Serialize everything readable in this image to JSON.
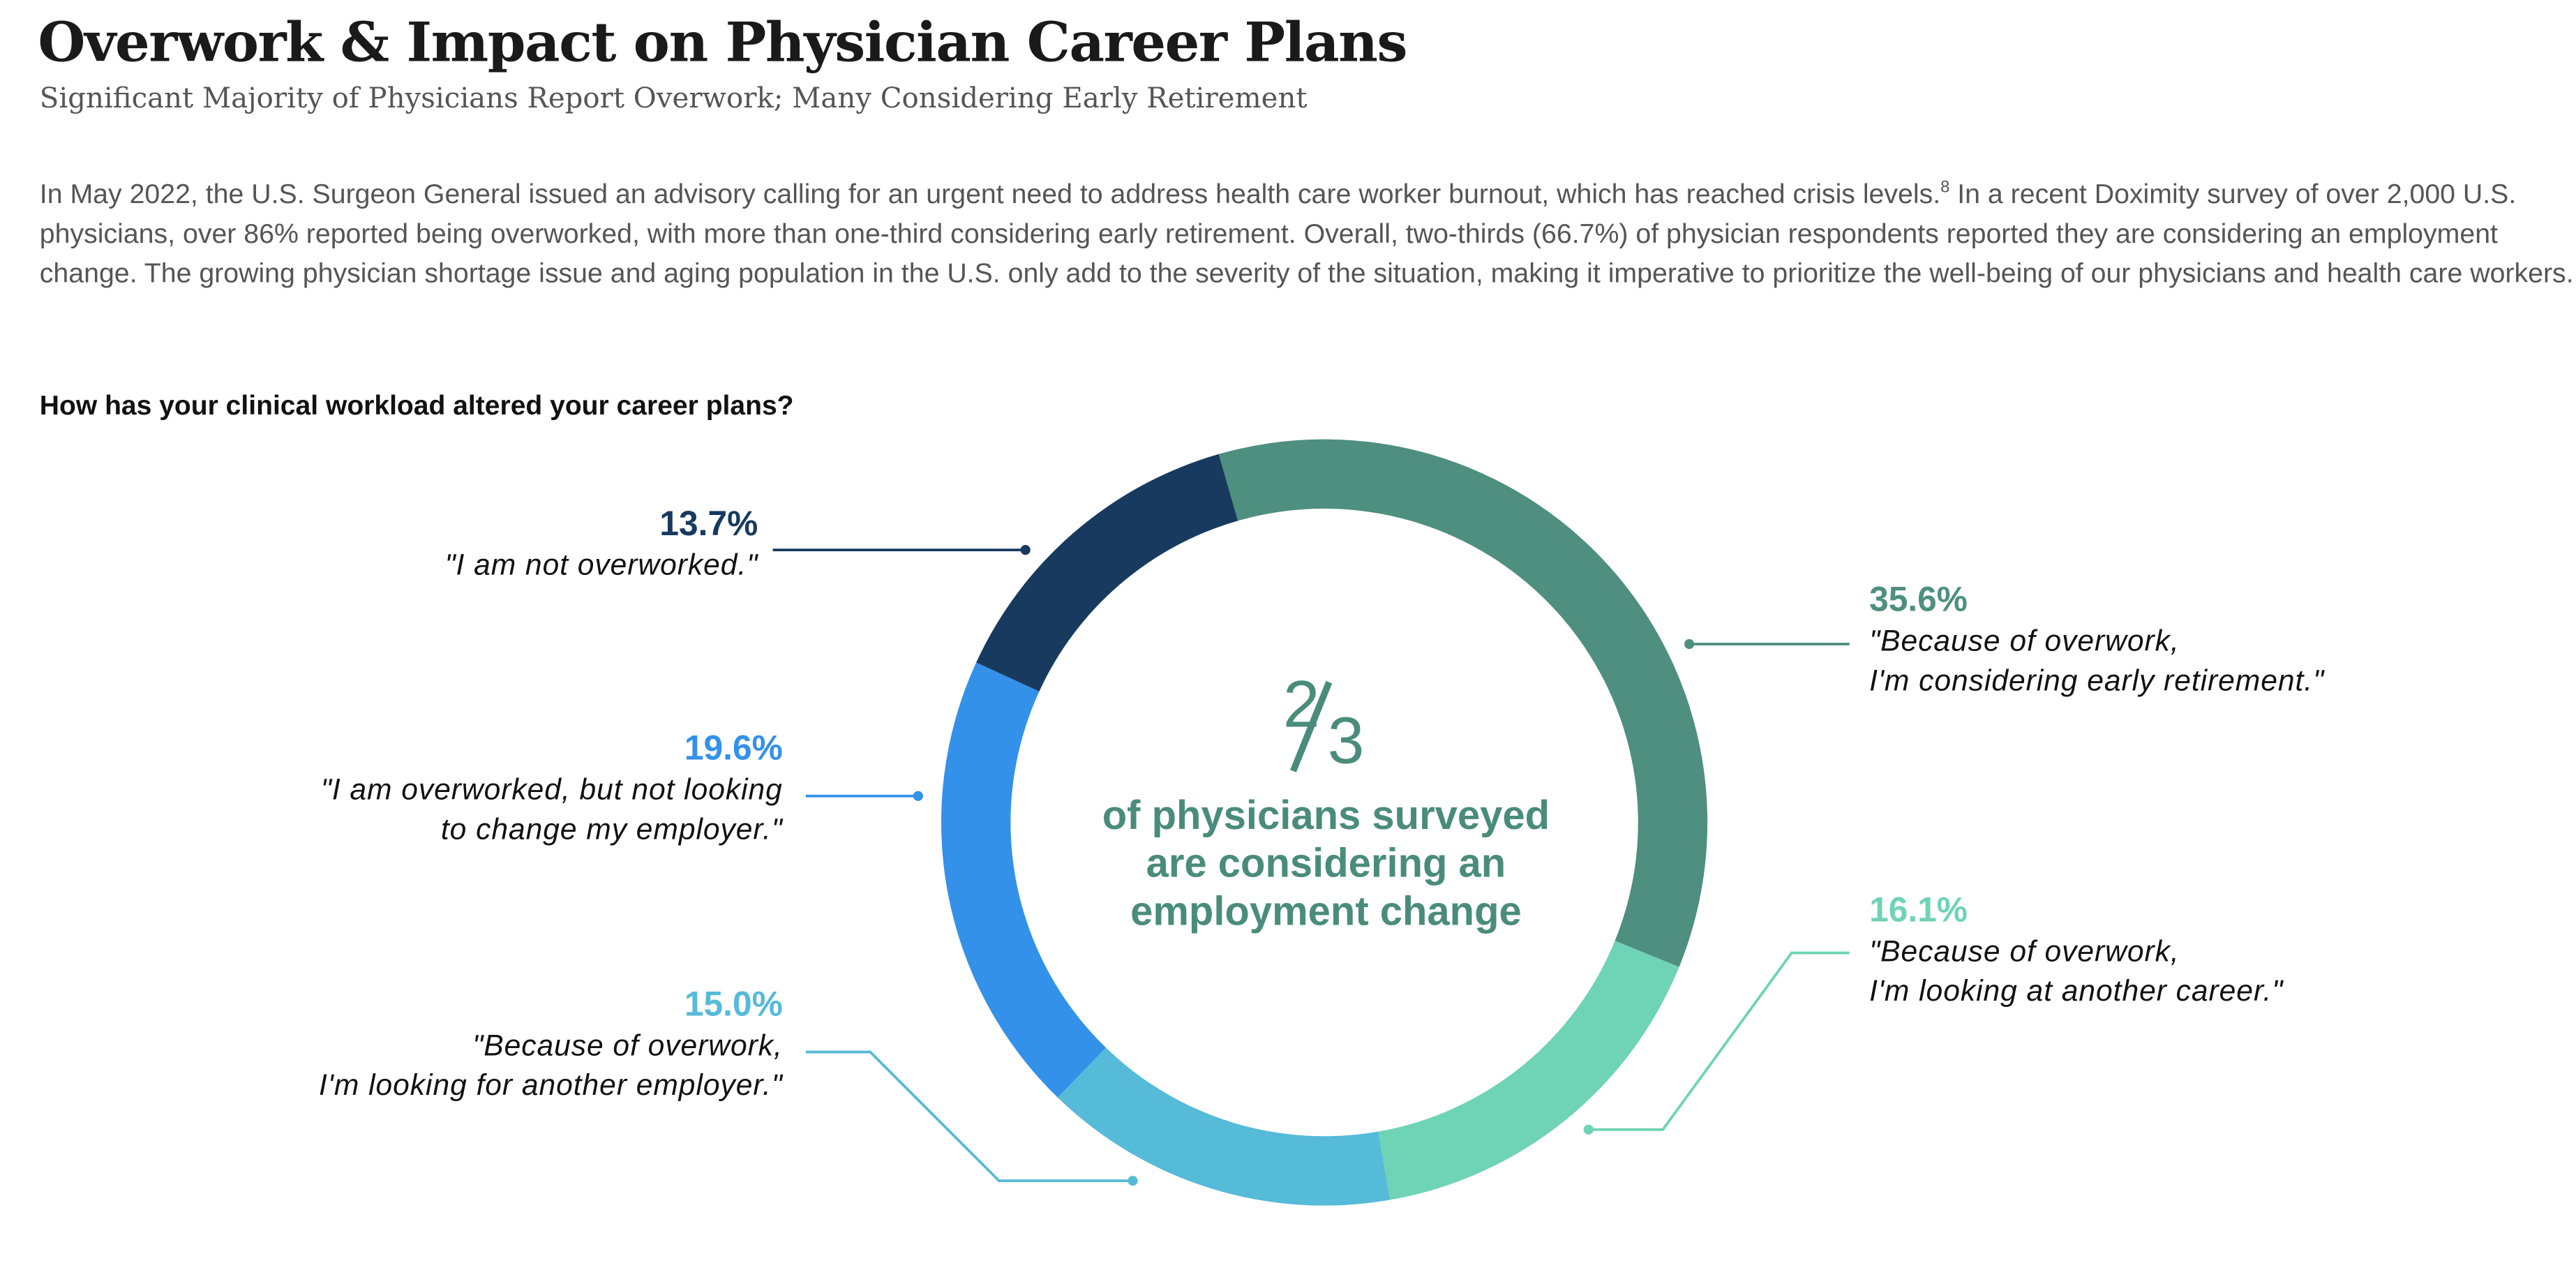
{
  "header": {
    "title": "Overwork & Impact on Physician Career Plans",
    "subtitle": "Significant Majority of Physicians Report Overwork; Many Considering Early Retirement"
  },
  "intro": {
    "text_before": "In May 2022, the U.S. Surgeon General issued an advisory calling for an urgent need to address health care worker burnout, which has reached crisis levels.",
    "footnote": "8",
    "text_after": " In a recent Doximity survey of over 2,000 U.S. physicians, over 86% reported being overworked, with more than one-third considering early retirement. Overall, two-thirds (66.7%) of physician respondents reported they are considering an employment change. The growing physician shortage issue and aging population in the U.S. only add to the severity of the situation, making it imperative to prioritize the well-being of our physicians and health care workers."
  },
  "question": "How has your clinical workload altered your career plans?",
  "center": {
    "numerator": "2",
    "denominator": "3",
    "text": "of physicians surveyed are considering an employment change"
  },
  "chart_data": {
    "type": "pie",
    "donut": true,
    "start_category": "Because of overwork, I'm considering early retirement.",
    "direction": "clockwise",
    "categories": [
      "Because of overwork, I'm considering early retirement.",
      "Because of overwork, I'm looking at another career.",
      "Because of overwork, I'm looking for another employer.",
      "I am overworked, but not looking to change my employer.",
      "I am not overworked."
    ],
    "values": [
      35.6,
      16.1,
      15.0,
      19.6,
      13.7
    ],
    "colors": [
      "#4e8f7f",
      "#6fd3b6",
      "#56bad9",
      "#3391ea",
      "#173a5e"
    ],
    "labels": [
      {
        "pct": "35.6%",
        "quote_lines": [
          "\"Because of overwork,",
          "I'm considering early retirement.\""
        ],
        "color": "#4e8f7f",
        "side": "right"
      },
      {
        "pct": "16.1%",
        "quote_lines": [
          "\"Because of overwork,",
          "I'm looking at another career.\""
        ],
        "color": "#6fd3b6",
        "side": "right"
      },
      {
        "pct": "15.0%",
        "quote_lines": [
          "\"Because of overwork,",
          "I'm looking for another employer.\""
        ],
        "color": "#56bad9",
        "side": "left"
      },
      {
        "pct": "19.6%",
        "quote_lines": [
          "\"I am overworked, but not looking",
          "to change my employer.\""
        ],
        "color": "#3391ea",
        "side": "left"
      },
      {
        "pct": "13.7%",
        "quote_lines": [
          "\"I am not overworked.\""
        ],
        "color": "#173a5e",
        "side": "left"
      }
    ]
  }
}
